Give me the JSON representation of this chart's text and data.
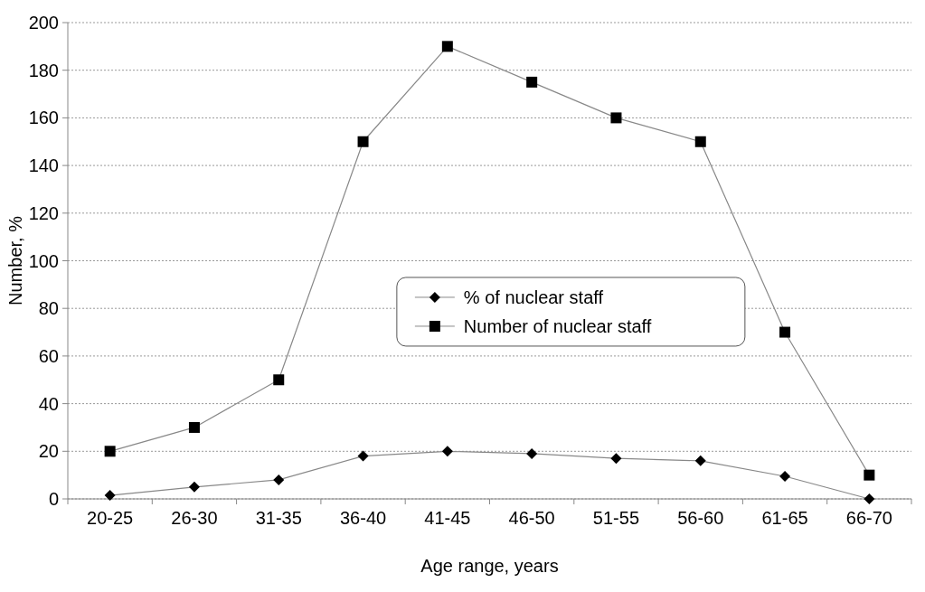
{
  "chart_data": {
    "type": "line",
    "xlabel": "Age range, years",
    "ylabel": "Number, %",
    "categories": [
      "20-25",
      "26-30",
      "31-35",
      "36-40",
      "41-45",
      "46-50",
      "51-55",
      "56-60",
      "61-65",
      "66-70"
    ],
    "series": [
      {
        "name": "% of nuclear staff",
        "color": "#000000",
        "marker": "diamond",
        "values": [
          1.5,
          5,
          8,
          18,
          20,
          19,
          17,
          16,
          9.5,
          0
        ]
      },
      {
        "name": "Number of nuclear staff",
        "color": "#000000",
        "marker": "square",
        "values": [
          20,
          30,
          50,
          150,
          190,
          175,
          160,
          150,
          70,
          10
        ]
      }
    ],
    "ylim": [
      0,
      200
    ],
    "yticks": [
      0,
      20,
      40,
      60,
      80,
      100,
      120,
      140,
      160,
      180,
      200
    ],
    "grid": "y",
    "legend": "center"
  }
}
